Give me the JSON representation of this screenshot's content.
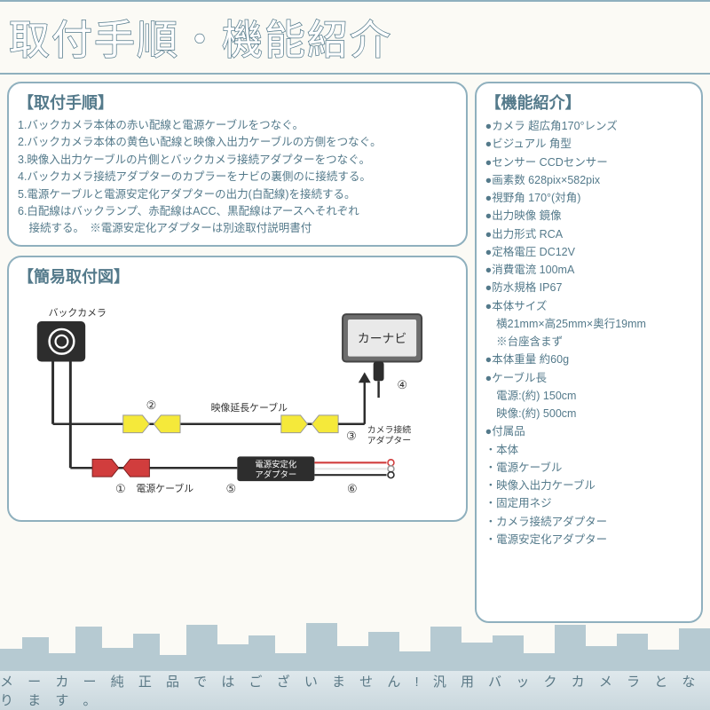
{
  "colors": {
    "accent": "#547a8b",
    "border": "#8fb0be",
    "bg": "#fbfaf5",
    "box_bg": "#ffffff",
    "footer_text": "#5a7885",
    "yellow": "#f5e93a",
    "red": "#d13d3d",
    "black": "#2d2d2d",
    "navi_fill": "#6d6d6d",
    "skyline": "#b6cad2"
  },
  "title": "取付手順・機能紹介",
  "install": {
    "heading": "【取付手順】",
    "steps": [
      "1.バックカメラ本体の赤い配線と電源ケーブルをつなぐ。",
      "2.バックカメラ本体の黄色い配線と映像入出力ケーブルの方側をつなぐ。",
      "3.映像入出力ケーブルの片側とバックカメラ接続アダプターをつなぐ。",
      "4.バックカメラ接続アダプターのカプラーをナビの裏側のに接続する。",
      "5.電源ケーブルと電源安定化アダプターの出力(白配線)を接続する。",
      "6.白配線はバックランプ、赤配線はACC、黒配線はアースへそれぞれ",
      "　接続する。　※電源安定化アダプターは別途取付説明書付"
    ]
  },
  "diagram": {
    "heading": "【簡易取付図】",
    "labels": {
      "camera": "バックカメラ",
      "navi": "カーナビ",
      "video_cable": "映像延長ケーブル",
      "camera_adapter_l1": "カメラ接続",
      "camera_adapter_l2": "アダプター",
      "power_cable": "電源ケーブル",
      "stabilizer_l1": "電源安定化",
      "stabilizer_l2": "アダプター"
    },
    "numbers": [
      "①",
      "②",
      "③",
      "④",
      "⑤",
      "⑥"
    ]
  },
  "specs": {
    "heading": "【機能紹介】",
    "items": [
      "●カメラ 超広角170°レンズ",
      "●ビジュアル 角型",
      "●センサー CCDセンサー",
      "●画素数 628pix×582pix",
      "●視野角 170°(対角)",
      "●出力映像 鏡像",
      "●出力形式 RCA",
      "●定格電圧 DC12V",
      "●消費電流 100mA",
      "●防水規格 IP67",
      "●本体サイズ",
      "　横21mm×高25mm×奥行19mm",
      "　※台座含まず",
      "●本体重量 約60g",
      "●ケーブル長",
      "　電源:(約) 150cm",
      "　映像:(約) 500cm",
      "●付属品",
      "・本体",
      "・電源ケーブル",
      "・映像入出力ケーブル",
      "・固定用ネジ",
      "・カメラ接続アダプター",
      "・電源安定化アダプター"
    ]
  },
  "footer": "メ ー カ ー 純 正 品 で は ご ざ い ま せ ん ! 汎 用 バ ッ ク カ メ ラ と な り ま す 。"
}
